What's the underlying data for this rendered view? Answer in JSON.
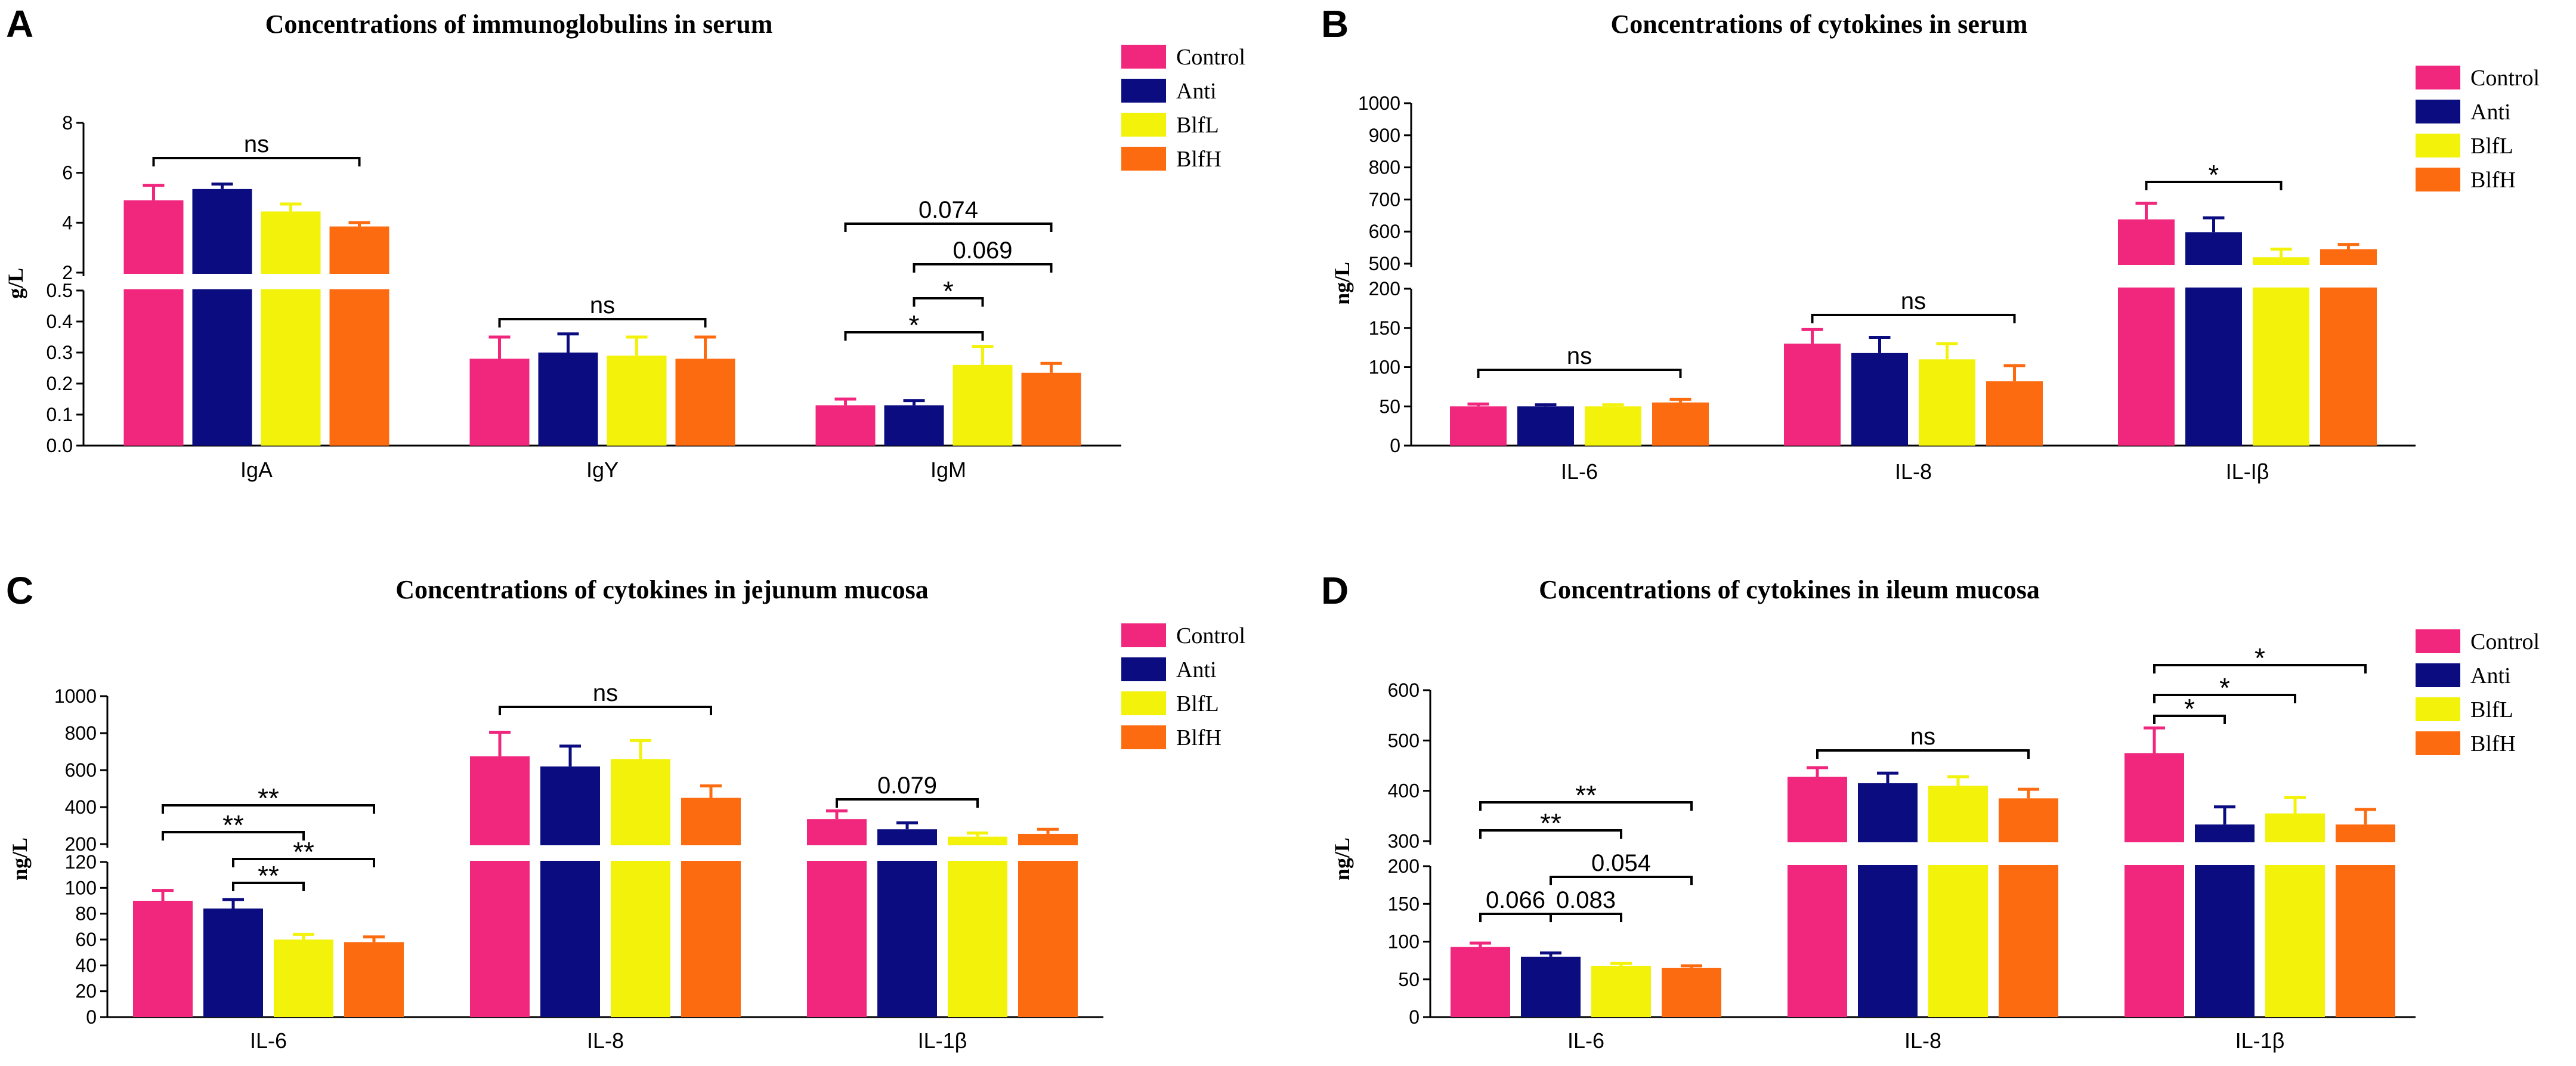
{
  "colors": {
    "Control": "#F0277D",
    "Anti": "#0B0C80",
    "BlfL": "#F2F20A",
    "BlfH": "#FC6B10",
    "axis": "#000000"
  },
  "chart_data": [
    {
      "panel": "A",
      "type": "bar",
      "title": "Concentrations of immunoglobulins in serum",
      "ylabel": "g/L",
      "xlabel": "",
      "categories": [
        "IgA",
        "IgY",
        "IgM"
      ],
      "series": [
        {
          "name": "Control",
          "values": [
            4.9,
            0.28,
            0.13
          ],
          "errors": [
            0.6,
            0.07,
            0.02
          ]
        },
        {
          "name": "Anti",
          "values": [
            5.35,
            0.3,
            0.13
          ],
          "errors": [
            0.2,
            0.06,
            0.015
          ]
        },
        {
          "name": "BlfL",
          "values": [
            4.45,
            0.29,
            0.26
          ],
          "errors": [
            0.3,
            0.06,
            0.06
          ]
        },
        {
          "name": "BlfH",
          "values": [
            3.85,
            0.28,
            0.235
          ],
          "errors": [
            0.15,
            0.07,
            0.03
          ]
        }
      ],
      "axis_segments": [
        {
          "range": [
            0,
            0.5
          ],
          "ticks": [
            "0.0",
            "0.1",
            "0.2",
            "0.3",
            "0.4",
            "0.5"
          ]
        },
        {
          "range": [
            2,
            8
          ],
          "ticks": [
            "2",
            "4",
            "6",
            "8"
          ]
        }
      ],
      "legend": [
        "Control",
        "Anti",
        "BlfL",
        "BlfH"
      ],
      "legend_position": "top-right",
      "annotations": [
        {
          "category": 0,
          "from": 0,
          "to": 3,
          "text": "ns"
        },
        {
          "category": 1,
          "from": 0,
          "to": 3,
          "text": "ns"
        },
        {
          "category": 2,
          "from": 0,
          "to": 3,
          "text": "0.074"
        },
        {
          "category": 2,
          "from": 1,
          "to": 3,
          "text": "0.069"
        },
        {
          "category": 2,
          "from": 1,
          "to": 2,
          "text": "*"
        },
        {
          "category": 2,
          "from": 0,
          "to": 2,
          "text": "*"
        }
      ]
    },
    {
      "panel": "B",
      "type": "bar",
      "title": "Concentrations of cytokines in serum",
      "ylabel": "ng/L",
      "xlabel": "",
      "categories": [
        "IL-6",
        "IL-8",
        "IL-Iβ"
      ],
      "series": [
        {
          "name": "Control",
          "values": [
            50,
            130,
            638
          ],
          "errors": [
            3,
            18,
            50
          ]
        },
        {
          "name": "Anti",
          "values": [
            50,
            118,
            598
          ],
          "errors": [
            2,
            20,
            45
          ]
        },
        {
          "name": "BlfL",
          "values": [
            50,
            110,
            520
          ],
          "errors": [
            2,
            20,
            25
          ]
        },
        {
          "name": "BlfH",
          "values": [
            55,
            82,
            545
          ],
          "errors": [
            4,
            20,
            15
          ]
        }
      ],
      "axis_segments": [
        {
          "range": [
            0,
            200
          ],
          "ticks": [
            "0",
            "50",
            "100",
            "150",
            "200"
          ]
        },
        {
          "range": [
            500,
            1000
          ],
          "ticks": [
            "500",
            "600",
            "700",
            "800",
            "900",
            "1000"
          ]
        }
      ],
      "legend": [
        "Control",
        "Anti",
        "BlfL",
        "BlfH"
      ],
      "legend_position": "top-right",
      "annotations": [
        {
          "category": 0,
          "from": 0,
          "to": 3,
          "text": "ns"
        },
        {
          "category": 1,
          "from": 0,
          "to": 3,
          "text": "ns"
        },
        {
          "category": 2,
          "from": 0,
          "to": 2,
          "text": "*"
        }
      ]
    },
    {
      "panel": "C",
      "type": "bar",
      "title": "Concentrations of cytokines in jejunum mucosa",
      "ylabel": "ng/L",
      "xlabel": "",
      "categories": [
        "IL-6",
        "IL-8",
        "IL-1β"
      ],
      "series": [
        {
          "name": "Control",
          "values": [
            90,
            675,
            335
          ],
          "errors": [
            8,
            130,
            45
          ]
        },
        {
          "name": "Anti",
          "values": [
            84,
            620,
            280
          ],
          "errors": [
            7,
            110,
            35
          ]
        },
        {
          "name": "BlfL",
          "values": [
            60,
            660,
            240
          ],
          "errors": [
            4,
            100,
            20
          ]
        },
        {
          "name": "BlfH",
          "values": [
            58,
            450,
            255
          ],
          "errors": [
            4,
            65,
            25
          ]
        }
      ],
      "axis_segments": [
        {
          "range": [
            0,
            120
          ],
          "ticks": [
            "0",
            "20",
            "40",
            "60",
            "80",
            "100",
            "120"
          ]
        },
        {
          "range": [
            200,
            1000
          ],
          "ticks": [
            "200",
            "400",
            "600",
            "800",
            "1000"
          ]
        }
      ],
      "legend": [
        "Control",
        "Anti",
        "BlfL",
        "BlfH"
      ],
      "legend_position": "top-right",
      "annotations": [
        {
          "category": 0,
          "from": 0,
          "to": 3,
          "text": "**"
        },
        {
          "category": 0,
          "from": 0,
          "to": 2,
          "text": "**"
        },
        {
          "category": 0,
          "from": 1,
          "to": 3,
          "text": "**"
        },
        {
          "category": 0,
          "from": 1,
          "to": 2,
          "text": "**"
        },
        {
          "category": 1,
          "from": 0,
          "to": 3,
          "text": "ns"
        },
        {
          "category": 2,
          "from": 0,
          "to": 2,
          "text": "0.079"
        }
      ]
    },
    {
      "panel": "D",
      "type": "bar",
      "title": "Concentrations of cytokines in ileum mucosa",
      "ylabel": "ng/L",
      "xlabel": "",
      "categories": [
        "IL-6",
        "IL-8",
        "IL-1β"
      ],
      "series": [
        {
          "name": "Control",
          "values": [
            93,
            428,
            475
          ],
          "errors": [
            5,
            18,
            50
          ]
        },
        {
          "name": "Anti",
          "values": [
            80,
            415,
            333
          ],
          "errors": [
            5,
            20,
            35
          ]
        },
        {
          "name": "BlfL",
          "values": [
            68,
            410,
            355
          ],
          "errors": [
            3,
            18,
            32
          ]
        },
        {
          "name": "BlfH",
          "values": [
            65,
            385,
            333
          ],
          "errors": [
            3,
            18,
            30
          ]
        }
      ],
      "axis_segments": [
        {
          "range": [
            0,
            200
          ],
          "ticks": [
            "0",
            "50",
            "100",
            "150",
            "200"
          ]
        },
        {
          "range": [
            300,
            600
          ],
          "ticks": [
            "300",
            "400",
            "500",
            "600"
          ]
        }
      ],
      "legend": [
        "Control",
        "Anti",
        "BlfL",
        "BlfH"
      ],
      "legend_position": "top-right",
      "annotations": [
        {
          "category": 0,
          "from": 0,
          "to": 3,
          "text": "**"
        },
        {
          "category": 0,
          "from": 0,
          "to": 2,
          "text": "**"
        },
        {
          "category": 0,
          "from": 1,
          "to": 3,
          "text": "0.054"
        },
        {
          "category": 0,
          "from": 0,
          "to": 1,
          "text": "0.066"
        },
        {
          "category": 0,
          "from": 1,
          "to": 2,
          "text": "0.083"
        },
        {
          "category": 1,
          "from": 0,
          "to": 3,
          "text": "ns"
        },
        {
          "category": 2,
          "from": 0,
          "to": 3,
          "text": "*"
        },
        {
          "category": 2,
          "from": 0,
          "to": 2,
          "text": "*"
        },
        {
          "category": 2,
          "from": 0,
          "to": 1,
          "text": "*"
        }
      ]
    }
  ]
}
